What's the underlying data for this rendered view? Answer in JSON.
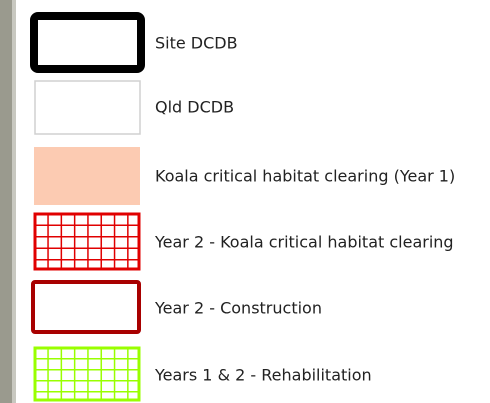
{
  "legend": {
    "items": [
      {
        "label": "Site DCDB"
      },
      {
        "label": "Qld DCDB"
      },
      {
        "label": "Koala critical habitat clearing (Year 1)"
      },
      {
        "label": "Year 2 - Koala critical habitat clearing"
      },
      {
        "label": "Year 2 - Construction"
      },
      {
        "label": "Years 1 & 2 - Rehabilitation"
      }
    ]
  }
}
